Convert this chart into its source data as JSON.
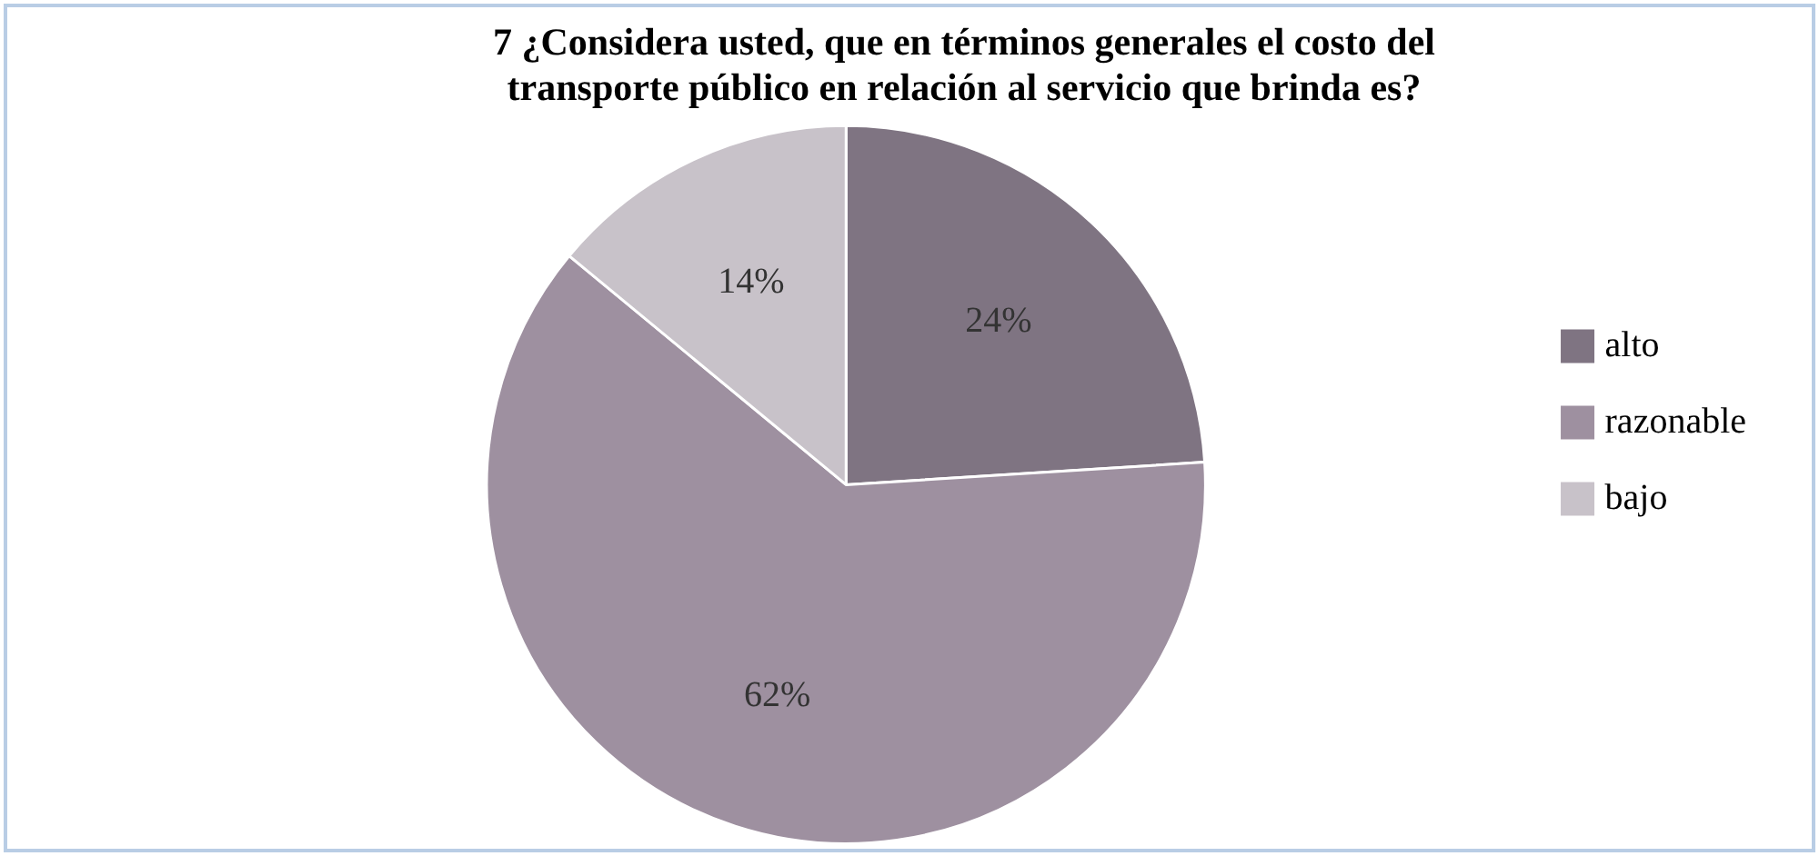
{
  "chart_data": {
    "type": "pie",
    "title": "7 ¿Considera usted, que en términos generales el costo del\ntransporte público en relación al servicio que brinda es?",
    "categories": [
      "alto",
      "razonable",
      "bajo"
    ],
    "values": [
      24,
      62,
      14
    ],
    "colors": [
      "#7f7482",
      "#9e90a0",
      "#c8c2c9"
    ],
    "value_labels": [
      "24%",
      "62%",
      "14%"
    ],
    "legend": "right"
  }
}
